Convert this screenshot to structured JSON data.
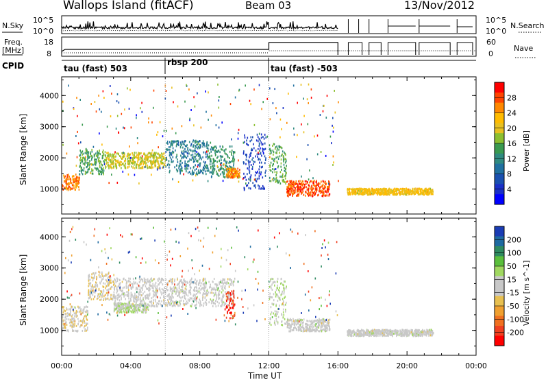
{
  "header": {
    "site": "Wallops Island (fitACF)",
    "beam": "Beam 03",
    "date": "13/Nov/2012"
  },
  "strip_labels": {
    "nsky": "N.Sky",
    "nsearch": "N.Search",
    "freq": "Freq.",
    "mhz": "[MHz]",
    "nave": "Nave",
    "cpid": "CPID"
  },
  "strip_ticks": {
    "noise_left": [
      "10^5",
      "10^0"
    ],
    "noise_right": [
      "10^5",
      "10^0"
    ],
    "freq_left": [
      "18",
      "8"
    ],
    "freq_right": [
      "60",
      "0"
    ]
  },
  "cpid": [
    "tau (fast) 503",
    "rbsp 200",
    "tau (fast) -503"
  ],
  "axes": {
    "ylabel": "Slant Range [km]",
    "xlabel": "Time UT",
    "yticks": [
      "1000",
      "2000",
      "3000",
      "4000"
    ],
    "xticks": [
      "00:00",
      "04:00",
      "08:00",
      "12:00",
      "16:00",
      "20:00",
      "00:00"
    ]
  },
  "colorbars": {
    "power": {
      "label": "Power [dB]",
      "ticks": [
        "28",
        "24",
        "20",
        "16",
        "12",
        "8",
        "4"
      ],
      "colors": [
        "#ff0000",
        "#ff4400",
        "#ff8800",
        "#ffbb00",
        "#e8c020",
        "#8cbf30",
        "#3a9a50",
        "#2f8a80",
        "#2070a0",
        "#1a50b0",
        "#1a30c8",
        "#0000ff"
      ]
    },
    "velocity": {
      "label": "Velocity [m s^-1]",
      "ticks": [
        "200",
        "100",
        "50",
        "15",
        "-15",
        "-50",
        "-100",
        "-200"
      ],
      "colors": [
        "#1a3cb4",
        "#1e6aa0",
        "#2e8a60",
        "#5bbf3c",
        "#a0d860",
        "#c8c8c8",
        "#c8c8c8",
        "#e8c050",
        "#f0a030",
        "#f07020",
        "#f04020",
        "#ff0000"
      ]
    }
  },
  "chart_data": {
    "type": "heatmap",
    "title": "Wallops Island (fitACF) Beam 03 13/Nov/2012",
    "xlabel": "Time UT",
    "ylabel": "Slant Range [km]",
    "xlim": [
      0,
      24
    ],
    "ylim": [
      200,
      4600
    ],
    "panels": [
      {
        "name": "Power [dB]",
        "clim": [
          0,
          30
        ],
        "regions": [
          {
            "t": [
              0.0,
              1.0
            ],
            "r": [
              1000,
              1500
            ],
            "value": 24
          },
          {
            "t": [
              1.0,
              2.5
            ],
            "r": [
              1500,
              2300
            ],
            "value": 14
          },
          {
            "t": [
              2.5,
              6.0
            ],
            "r": [
              1700,
              2200
            ],
            "value": 18
          },
          {
            "t": [
              6.0,
              8.5
            ],
            "r": [
              1500,
              2600
            ],
            "value": 10
          },
          {
            "t": [
              8.5,
              10.0
            ],
            "r": [
              1400,
              2400
            ],
            "value": 12
          },
          {
            "t": [
              9.5,
              10.3
            ],
            "r": [
              1400,
              1700
            ],
            "value": 24
          },
          {
            "t": [
              10.5,
              11.8
            ],
            "r": [
              1000,
              2800
            ],
            "value": 5
          },
          {
            "t": [
              12.0,
              13.0
            ],
            "r": [
              1200,
              2500
            ],
            "value": 14
          },
          {
            "t": [
              13.0,
              15.5
            ],
            "r": [
              800,
              1300
            ],
            "value": 26
          },
          {
            "t": [
              16.5,
              21.5
            ],
            "r": [
              850,
              1050
            ],
            "value": 20
          }
        ]
      },
      {
        "name": "Velocity [m s^-1]",
        "clim": [
          -250,
          250
        ],
        "regions": [
          {
            "t": [
              0.0,
              1.5
            ],
            "r": [
              1000,
              1800
            ],
            "value": -20
          },
          {
            "t": [
              1.5,
              3.0
            ],
            "r": [
              2000,
              2900
            ],
            "value": -40
          },
          {
            "t": [
              3.0,
              5.0
            ],
            "r": [
              1600,
              1900
            ],
            "value": 40
          },
          {
            "t": [
              3.0,
              10.0
            ],
            "r": [
              1800,
              2700
            ],
            "value": 0
          },
          {
            "t": [
              9.5,
              10.0
            ],
            "r": [
              1400,
              2300
            ],
            "value": -200
          },
          {
            "t": [
              12.0,
              13.0
            ],
            "r": [
              1200,
              2700
            ],
            "value": 30
          },
          {
            "t": [
              13.0,
              15.5
            ],
            "r": [
              1000,
              1400
            ],
            "value": 0
          },
          {
            "t": [
              16.5,
              21.5
            ],
            "r": [
              850,
              1050
            ],
            "value": 0
          }
        ]
      }
    ]
  }
}
